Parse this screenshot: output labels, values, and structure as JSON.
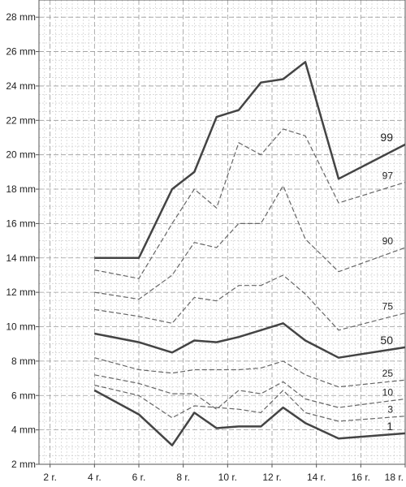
{
  "chart_data": {
    "type": "line",
    "title": "",
    "xlabel": "",
    "ylabel": "",
    "x": [
      4,
      6,
      7.5,
      8.5,
      9.5,
      10.5,
      11.5,
      12.5,
      13.5,
      15,
      18
    ],
    "xlim": [
      1.5,
      18
    ],
    "ylim": [
      2,
      29
    ],
    "x_ticks": [
      2,
      4,
      6,
      8,
      10,
      12,
      14,
      16,
      18
    ],
    "x_tick_labels": [
      "2 r.",
      "4 r.",
      "6 r.",
      "8 r.",
      "10 r.",
      "12 r.",
      "14 r.",
      "16 r.",
      "18 r."
    ],
    "y_ticks": [
      2,
      4,
      6,
      8,
      10,
      12,
      14,
      16,
      18,
      20,
      22,
      24,
      26,
      28
    ],
    "y_tick_labels": [
      "2 mm",
      "4 mm",
      "6 mm",
      "8 mm",
      "10 mm",
      "12 mm",
      "14 mm",
      "16 mm",
      "18 mm",
      "20 mm",
      "22 mm",
      "24 mm",
      "26 mm",
      "28 mm"
    ],
    "grid": true,
    "series": [
      {
        "name": "99",
        "values": [
          14.0,
          14.0,
          18.0,
          19.0,
          22.2,
          22.6,
          24.2,
          24.4,
          25.4,
          18.6,
          20.6
        ],
        "color": "#444444",
        "width": 2.5,
        "dash": "",
        "label_size": 14
      },
      {
        "name": "97",
        "values": [
          13.3,
          12.8,
          16.0,
          18.0,
          16.9,
          20.7,
          20.0,
          21.5,
          21.1,
          17.2,
          18.4
        ],
        "color": "#666666",
        "width": 1.2,
        "dash": "6 3",
        "label_size": 12
      },
      {
        "name": "90",
        "values": [
          12.0,
          11.6,
          13.0,
          14.9,
          14.6,
          16.0,
          16.0,
          18.2,
          15.1,
          13.2,
          14.6
        ],
        "color": "#666666",
        "width": 1.2,
        "dash": "6 3",
        "label_size": 12
      },
      {
        "name": "75",
        "values": [
          11.0,
          10.6,
          10.2,
          11.7,
          11.5,
          12.4,
          12.4,
          13.0,
          11.9,
          9.8,
          10.8
        ],
        "color": "#666666",
        "width": 1.2,
        "dash": "6 3",
        "label_size": 12
      },
      {
        "name": "50",
        "values": [
          9.6,
          9.1,
          8.5,
          9.2,
          9.1,
          9.4,
          9.8,
          10.2,
          9.2,
          8.2,
          8.8
        ],
        "color": "#444444",
        "width": 2.5,
        "dash": "",
        "label_size": 14
      },
      {
        "name": "25",
        "values": [
          8.2,
          7.5,
          7.3,
          7.5,
          7.5,
          7.5,
          7.6,
          8.0,
          7.2,
          6.5,
          6.9
        ],
        "color": "#666666",
        "width": 1.2,
        "dash": "6 3",
        "label_size": 12
      },
      {
        "name": "10",
        "values": [
          7.2,
          6.7,
          6.1,
          6.1,
          5.2,
          6.3,
          6.1,
          6.8,
          5.8,
          5.3,
          5.8
        ],
        "color": "#666666",
        "width": 1.2,
        "dash": "6 3",
        "label_size": 12
      },
      {
        "name": "3",
        "values": [
          6.6,
          6.0,
          4.7,
          5.4,
          5.3,
          5.2,
          5.0,
          6.3,
          5.0,
          4.5,
          4.8
        ],
        "color": "#666666",
        "width": 1.2,
        "dash": "6 3",
        "label_size": 12
      },
      {
        "name": "1",
        "values": [
          6.3,
          4.9,
          3.1,
          5.0,
          4.1,
          4.2,
          4.2,
          5.3,
          4.4,
          3.5,
          3.8
        ],
        "color": "#444444",
        "width": 2.5,
        "dash": "",
        "label_size": 14
      }
    ]
  }
}
